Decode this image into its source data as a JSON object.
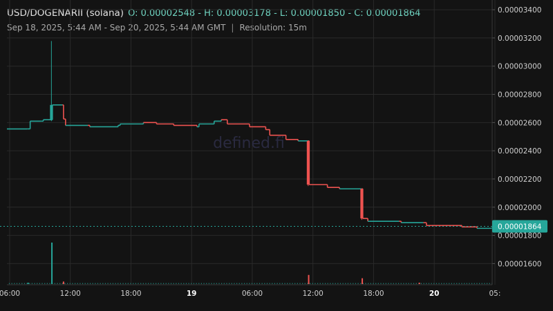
{
  "header": {
    "symbol": "USD/DOGENARII (solana)",
    "ohlc": "O: 0.00002548 - H: 0.00003178 - L: 0.00001850 - C: 0.00001864",
    "range": "Sep 18, 2025, 5:44 AM - Sep 20, 2025, 5:44 AM GMT",
    "separator": "|",
    "resolution": "Resolution: 15m"
  },
  "watermark": "defined.fi",
  "colors": {
    "up": "#26a69a",
    "down": "#ef5350",
    "grid": "#2a2a2a",
    "price_tag": "#26a69a"
  },
  "chart_data": {
    "type": "candlestick",
    "price_axis": {
      "ticks": [
        "0.00003400",
        "0.00003200",
        "0.00003000",
        "0.00002800",
        "0.00002600",
        "0.00002400",
        "0.00002200",
        "0.00002000",
        "0.00001800",
        "0.00001600"
      ],
      "tick_values": [
        3.4e-05,
        3.2e-05,
        3e-05,
        2.8e-05,
        2.6e-05,
        2.4e-05,
        2.2e-05,
        2e-05,
        1.8e-05,
        1.6e-05
      ],
      "range": [
        1.45e-05,
        3.42e-05
      ]
    },
    "time_axis": {
      "labels": [
        "06:00",
        "12:00",
        "18:00",
        "19",
        "06:00",
        "12:00",
        "18:00",
        "20",
        "05:"
      ],
      "label_hours": [
        0.27,
        6.27,
        12.27,
        18.27,
        24.27,
        30.27,
        36.27,
        42.27,
        48.27
      ],
      "bold": [
        false,
        false,
        false,
        true,
        false,
        false,
        false,
        true,
        false
      ],
      "range_hours": [
        0,
        48
      ]
    },
    "last_price": {
      "value": 1.864e-05,
      "label": "0.00001864"
    },
    "ohlc": {
      "open": 2.548e-05,
      "high": 3.178e-05,
      "low": 1.85e-05,
      "close": 1.864e-05
    },
    "price_path": [
      [
        0,
        2.555e-05
      ],
      [
        2,
        2.555e-05
      ],
      [
        2.3,
        2.61e-05
      ],
      [
        3.4,
        2.61e-05
      ],
      [
        3.6,
        2.62e-05
      ],
      [
        4.4,
        2.62e-05
      ],
      [
        4.5,
        2.725e-05
      ],
      [
        5.5,
        2.725e-05
      ],
      [
        5.6,
        2.625e-05
      ],
      [
        5.8,
        2.58e-05
      ],
      [
        8,
        2.58e-05
      ],
      [
        8.2,
        2.57e-05
      ],
      [
        11,
        2.58e-05
      ],
      [
        11.2,
        2.59e-05
      ],
      [
        13.5,
        2.6e-05
      ],
      [
        14.8,
        2.59e-05
      ],
      [
        16.5,
        2.58e-05
      ],
      [
        18.8,
        2.57e-05
      ],
      [
        19,
        2.59e-05
      ],
      [
        20.5,
        2.61e-05
      ],
      [
        21.2,
        2.62e-05
      ],
      [
        21.8,
        2.59e-05
      ],
      [
        24,
        2.57e-05
      ],
      [
        25.6,
        2.55e-05
      ],
      [
        26,
        2.51e-05
      ],
      [
        27.6,
        2.48e-05
      ],
      [
        28.8,
        2.47e-05
      ],
      [
        29.8,
        2.47e-05
      ],
      [
        29.9,
        2.16e-05
      ],
      [
        31.7,
        2.14e-05
      ],
      [
        32.9,
        2.13e-05
      ],
      [
        35.1,
        2.13e-05
      ],
      [
        35.2,
        1.92e-05
      ],
      [
        35.7,
        1.9e-05
      ],
      [
        38.8,
        1.9e-05
      ],
      [
        39,
        1.89e-05
      ],
      [
        41.2,
        1.89e-05
      ],
      [
        41.5,
        1.87e-05
      ],
      [
        45,
        1.86e-05
      ],
      [
        46.5,
        1.85e-05
      ],
      [
        48,
        1.864e-05
      ]
    ],
    "spikes": [
      {
        "hour": 4.4,
        "open": 2.62e-05,
        "high": 3.178e-05,
        "low": 2.61e-05,
        "close": 2.725e-05
      },
      {
        "hour": 29.8,
        "open": 2.47e-05,
        "high": 2.47e-05,
        "low": 2.15e-05,
        "close": 2.16e-05
      },
      {
        "hour": 35.1,
        "open": 2.13e-05,
        "high": 2.13e-05,
        "low": 1.91e-05,
        "close": 1.92e-05
      }
    ],
    "volume_bars": [
      {
        "hour": 4.45,
        "value": 1.0,
        "up": true
      },
      {
        "hour": 5.6,
        "value": 0.06,
        "up": false
      },
      {
        "hour": 29.85,
        "value": 0.22,
        "up": false
      },
      {
        "hour": 35.15,
        "value": 0.14,
        "up": false
      },
      {
        "hour": 2.1,
        "value": 0.03,
        "up": true
      },
      {
        "hour": 40.8,
        "value": 0.02,
        "up": false
      }
    ]
  }
}
